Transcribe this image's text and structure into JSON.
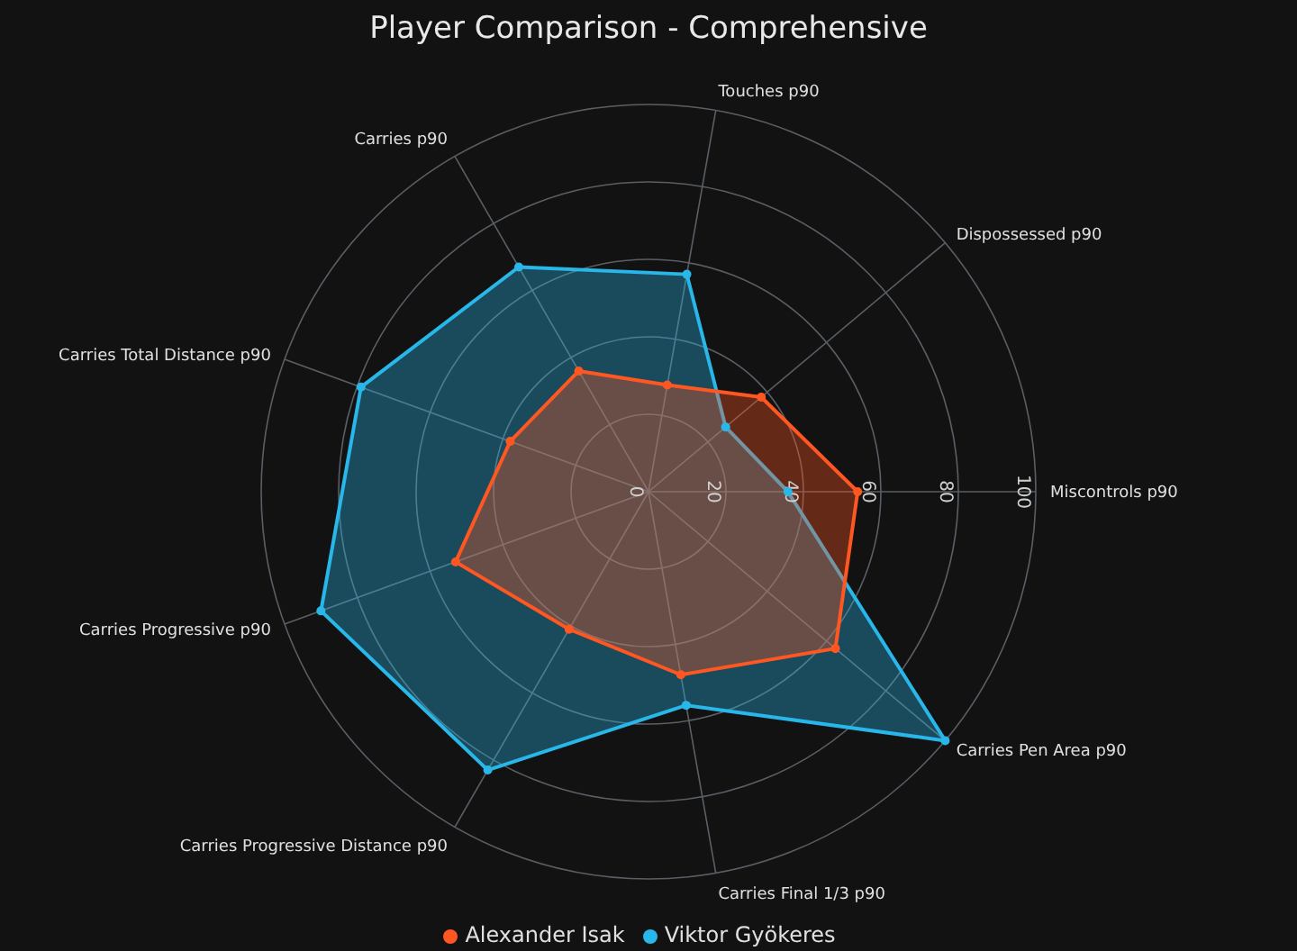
{
  "chart_data": {
    "type": "radar",
    "title": "Player Comparison - Comprehensive",
    "categories": [
      "Touches p90",
      "Dispossessed p90",
      "Miscontrols p90",
      "Carries Pen Area p90",
      "Carries Final 1/3 p90",
      "Carries Progressive Distance p90",
      "Carries Progressive p90",
      "Carries Total Distance p90",
      "Carries p90"
    ],
    "series": [
      {
        "name": "Viktor Gyökeres",
        "color": "#29b6e8",
        "values": [
          57,
          26,
          36,
          100,
          56,
          83,
          90,
          79,
          67
        ]
      },
      {
        "name": "Alexander Isak",
        "color": "#ff5722",
        "values": [
          28,
          38,
          54,
          63,
          48,
          41,
          53,
          38,
          36
        ]
      }
    ],
    "ylim": [
      0,
      100
    ],
    "yticks": [
      0,
      20,
      40,
      60,
      80,
      100
    ],
    "grid": true,
    "legend": "bottom",
    "marker": "circle"
  }
}
